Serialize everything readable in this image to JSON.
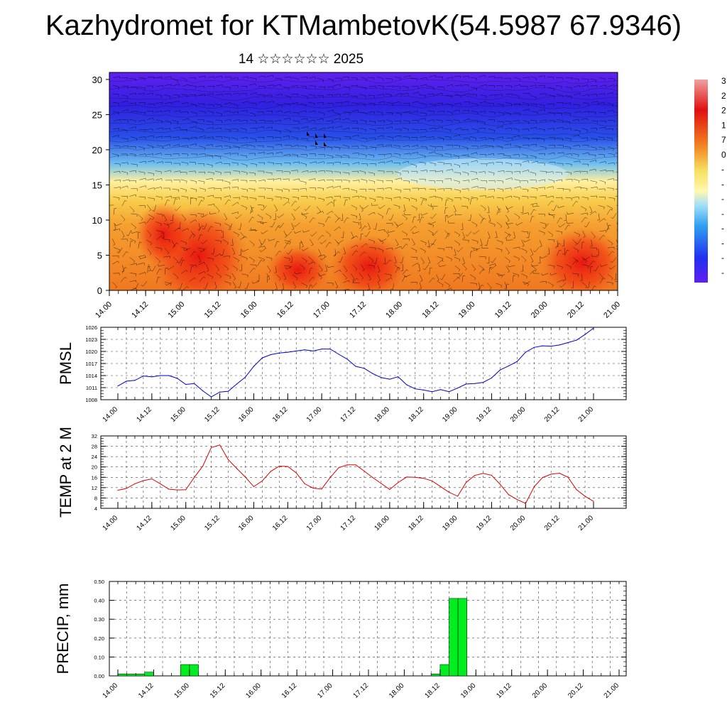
{
  "title": "Kazhydromet for KTMambetovK(54.5987 67.9346)",
  "subtitle": "14 ☆☆☆☆☆☆ 2025",
  "x_tick_labels": [
    "14.00",
    "14.12",
    "15.00",
    "15.12",
    "16.00",
    "16.12",
    "17.00",
    "17.12",
    "18.00",
    "18.12",
    "19.00",
    "19.12",
    "20.00",
    "20.12",
    "21.00"
  ],
  "chart_data": [
    {
      "type": "heatmap",
      "name": "cross-section",
      "y_ticks": [
        0,
        5,
        10,
        15,
        20,
        25,
        30
      ],
      "ylim": [
        0,
        31
      ],
      "colorbar_labels": [
        "3",
        "2",
        "2",
        "1",
        "7",
        "0",
        "-",
        "-",
        "-",
        "-",
        "-",
        "-",
        "-",
        "-"
      ],
      "colors": {
        "hot": "#e01010",
        "warm": "#f07820",
        "mild": "#f8d050",
        "pale": "#fff0a0",
        "cool": "#70c0f0",
        "cold": "#2850e8",
        "deep": "#6020f0"
      }
    },
    {
      "type": "line",
      "name": "PMSL",
      "ylabel": "PMSL",
      "ylim": [
        1008,
        1026
      ],
      "y_ticks": [
        1008,
        1011,
        1014,
        1017,
        1020,
        1023,
        1026
      ],
      "color": "#0000cc",
      "x": [
        0,
        3,
        6,
        9,
        12,
        15,
        18,
        21,
        24,
        27,
        30,
        33,
        36,
        39,
        42,
        45,
        48,
        51,
        54,
        57,
        60,
        63,
        66,
        69,
        72,
        75,
        78,
        81,
        84,
        87,
        90,
        93,
        96,
        99,
        102,
        105,
        108,
        111,
        114,
        117,
        120,
        123,
        126,
        129,
        132,
        135,
        138,
        141,
        144,
        147,
        150,
        153,
        156,
        159,
        162,
        165,
        168
      ],
      "values": [
        1011.4,
        1012.6,
        1012.8,
        1013.9,
        1013.7,
        1014,
        1014,
        1013.3,
        1011.8,
        1012,
        1010.2,
        1008.7,
        1009.9,
        1010.1,
        1011.9,
        1013.6,
        1016.3,
        1018.4,
        1019.2,
        1019.6,
        1019.8,
        1020.1,
        1020.4,
        1020.1,
        1020.6,
        1020.6,
        1019.3,
        1018.1,
        1016.3,
        1015.8,
        1014.5,
        1013.5,
        1013.1,
        1013.7,
        1011.7,
        1010.7,
        1010.4,
        1010,
        1010.5,
        1010,
        1010.9,
        1011.9,
        1012,
        1012.3,
        1013.4,
        1015.4,
        1016.4,
        1017.5,
        1019.8,
        1021,
        1021.4,
        1021.3,
        1021.6,
        1022.2,
        1022.8,
        1024.2,
        1025.8
      ]
    },
    {
      "type": "line",
      "name": "TEMP at 2 M",
      "ylabel": "TEMP at 2 M",
      "ylim": [
        4,
        32
      ],
      "y_ticks": [
        4,
        8,
        12,
        16,
        20,
        24,
        28,
        32
      ],
      "color": "#dd0000",
      "x": [
        0,
        3,
        6,
        9,
        12,
        15,
        18,
        21,
        24,
        27,
        30,
        33,
        36,
        39,
        42,
        45,
        48,
        51,
        54,
        57,
        60,
        63,
        66,
        69,
        72,
        75,
        78,
        81,
        84,
        87,
        90,
        93,
        96,
        99,
        102,
        105,
        108,
        111,
        114,
        117,
        120,
        123,
        126,
        129,
        132,
        135,
        138,
        141,
        144,
        147,
        150,
        153,
        156,
        159,
        162,
        165,
        168
      ],
      "values": [
        11,
        11.7,
        13.5,
        14.7,
        15.4,
        13.5,
        11.4,
        11.1,
        11.2,
        16,
        20.3,
        27.5,
        28.5,
        22.8,
        19.4,
        16.1,
        12.4,
        14.6,
        18.3,
        20.3,
        20.2,
        17.7,
        13.5,
        11.8,
        11.5,
        15.9,
        19.7,
        20.8,
        20.8,
        18.4,
        15.9,
        13.6,
        11.3,
        14,
        16.1,
        16,
        15.6,
        14.6,
        12.4,
        10.2,
        8.7,
        14,
        16.7,
        17.5,
        16.8,
        13.3,
        9.3,
        7.4,
        5.9,
        12.3,
        15.9,
        17.2,
        17.6,
        16,
        11.2,
        8.7,
        6.7
      ]
    },
    {
      "type": "bar",
      "name": "PRECIP, mm",
      "ylabel": "PRECIP, mm",
      "ylim": [
        0,
        0.5
      ],
      "y_ticks": [
        "0.00",
        "0.10",
        "0.20",
        "0.30",
        "0.40",
        "0.50"
      ],
      "color": "#00ee20",
      "x": [
        3,
        6,
        9,
        12,
        24,
        27,
        108,
        111,
        114,
        117
      ],
      "values": [
        0.01,
        0.01,
        0.01,
        0.02,
        0.06,
        0.06,
        0.01,
        0.06,
        0.41,
        0.41
      ]
    }
  ]
}
